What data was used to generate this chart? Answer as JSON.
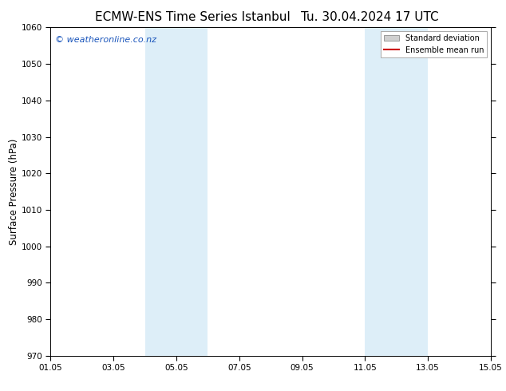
{
  "title": "ECMW-ENS Time Series Istanbul",
  "title2": "Tu. 30.04.2024 17 UTC",
  "ylabel": "Surface Pressure (hPa)",
  "xlim": [
    0,
    14
  ],
  "ylim": [
    970,
    1060
  ],
  "yticks": [
    970,
    980,
    990,
    1000,
    1010,
    1020,
    1030,
    1040,
    1050,
    1060
  ],
  "xtick_labels": [
    "01.05",
    "03.05",
    "05.05",
    "07.05",
    "09.05",
    "11.05",
    "13.05",
    "15.05"
  ],
  "xtick_positions": [
    0,
    2,
    4,
    6,
    8,
    10,
    12,
    14
  ],
  "shaded_bands": [
    {
      "x_start": 3.0,
      "x_end": 5.0
    },
    {
      "x_start": 10.0,
      "x_end": 12.0
    }
  ],
  "shaded_color": "#ddeef8",
  "watermark_text": "© weatheronline.co.nz",
  "watermark_color": "#1a55bb",
  "watermark_fontsize": 8,
  "legend_std_label": "Standard deviation",
  "legend_ens_label": "Ensemble mean run",
  "legend_std_facecolor": "#d0d0d0",
  "legend_std_edgecolor": "#999999",
  "legend_ens_color": "#cc0000",
  "bg_color": "#ffffff",
  "title_fontsize": 11,
  "tick_label_fontsize": 7.5,
  "ylabel_fontsize": 8.5
}
